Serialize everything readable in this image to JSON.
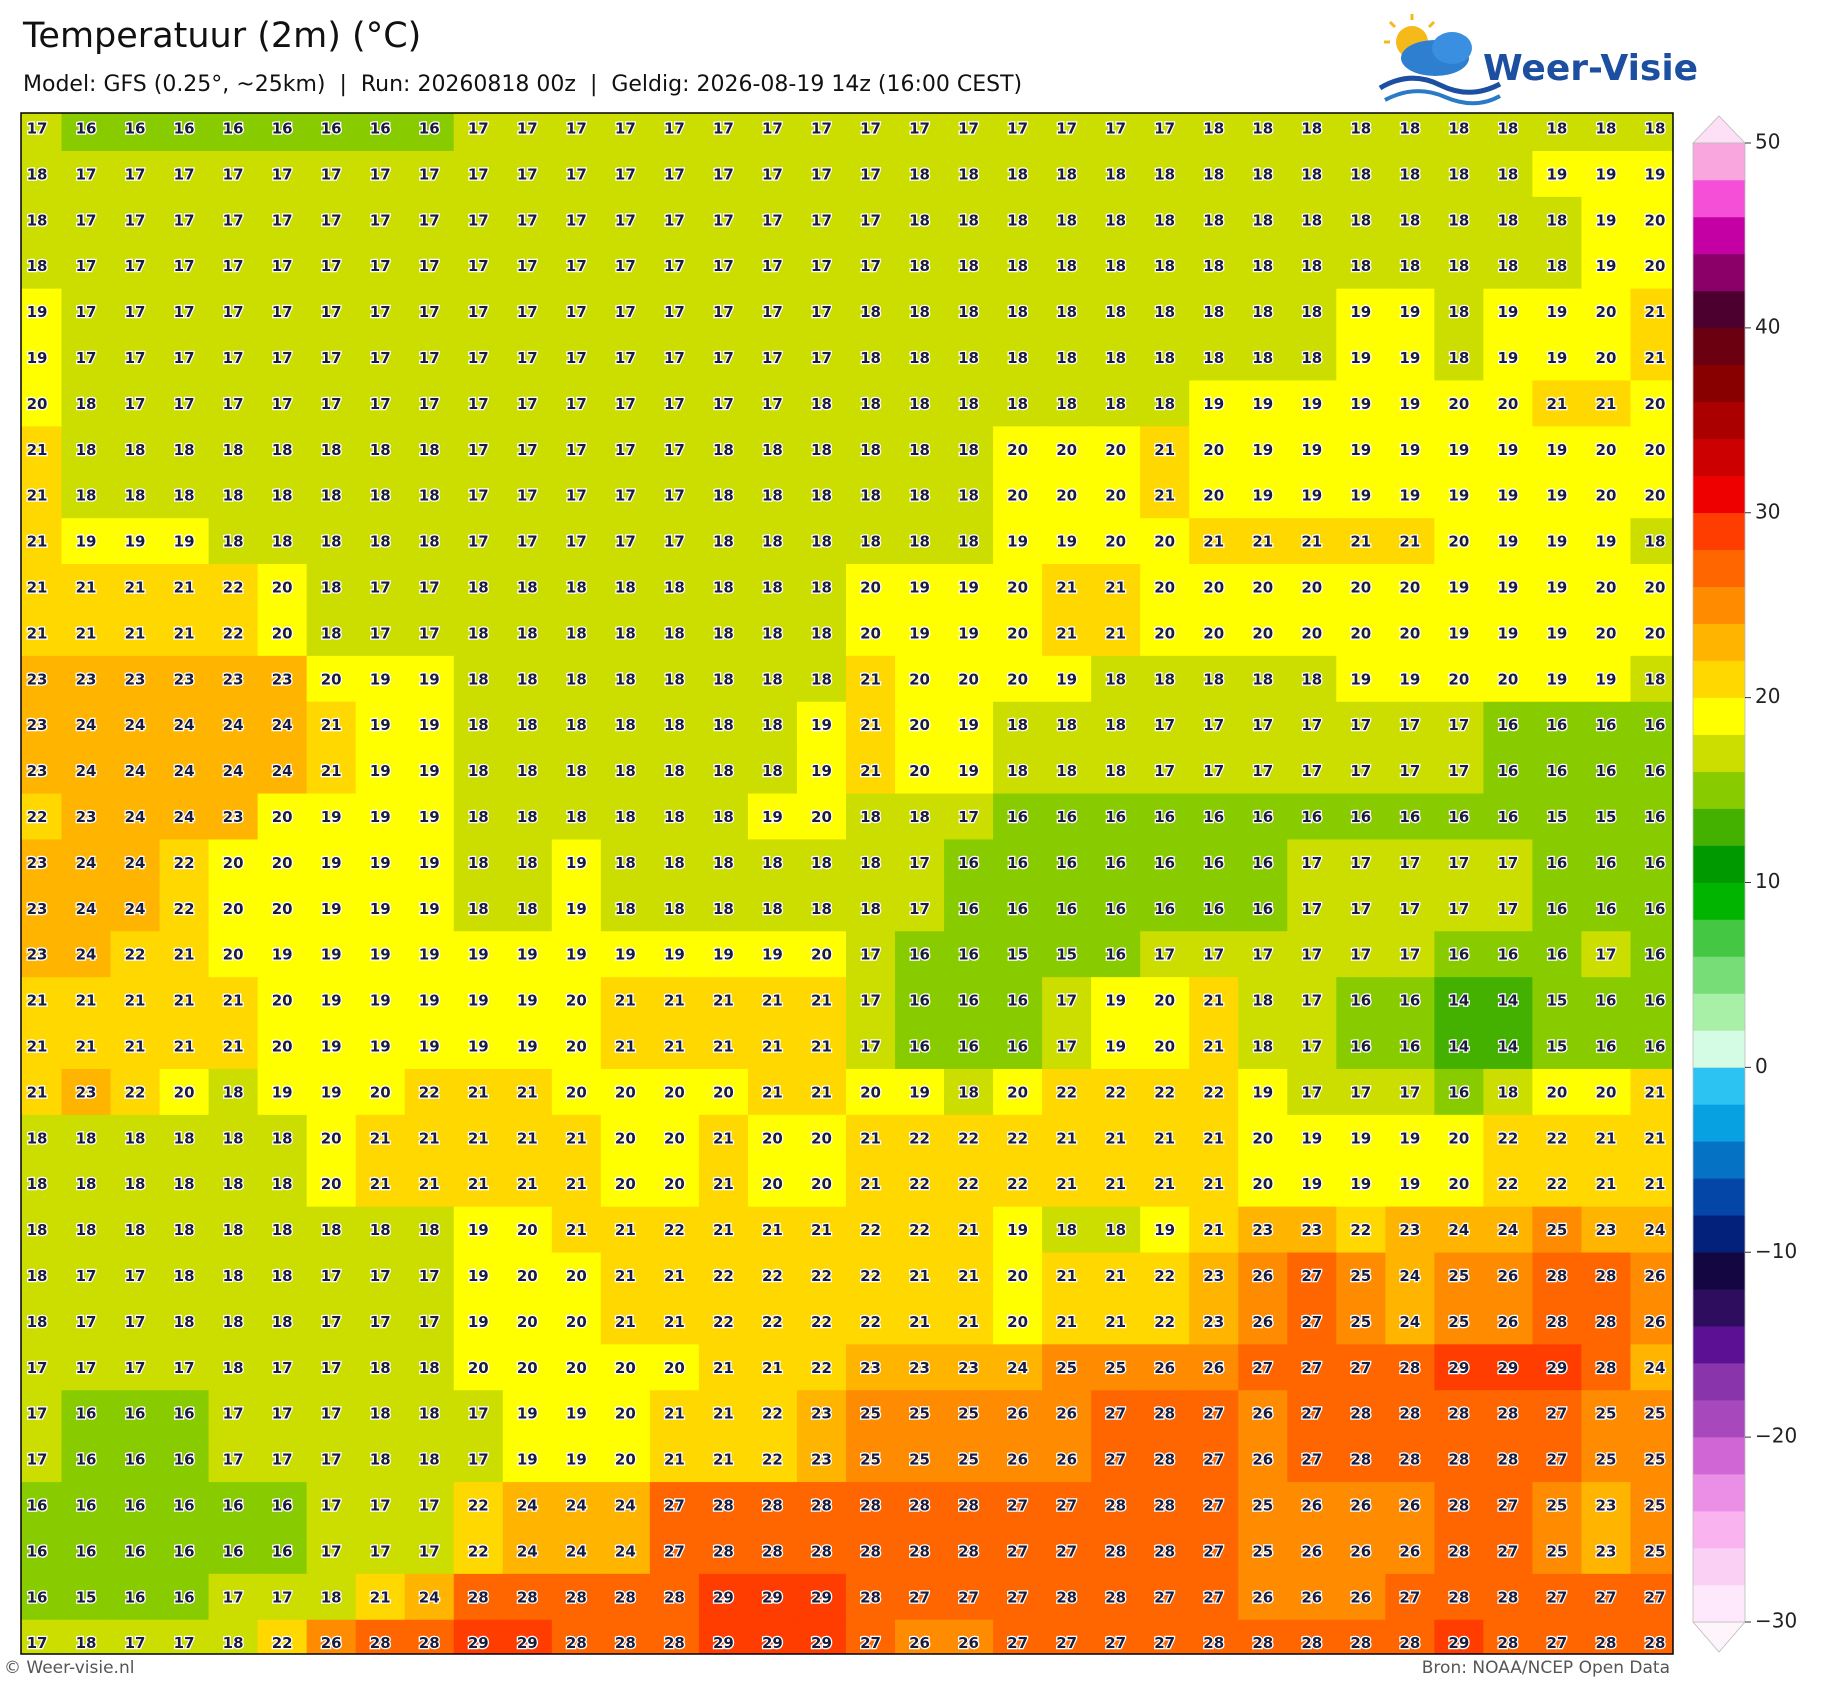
{
  "header": {
    "title": "Temperatuur (2m) (°C)",
    "subtitle": "Model: GFS (0.25°, ~25km)  |  Run: 20260818 00z  |  Geldig: 2026-08-19 14z (16:00 CEST)"
  },
  "logo": {
    "text": "Weer-Visie"
  },
  "map": {
    "rows": [
      [
        17,
        16,
        16,
        16,
        16,
        16,
        16,
        16,
        16,
        17,
        17,
        17,
        17,
        17,
        17,
        17,
        17,
        17,
        17,
        17,
        17,
        17,
        17,
        17,
        18,
        18,
        18,
        18,
        18,
        18,
        18,
        18,
        18,
        18
      ],
      [
        18,
        17,
        17,
        17,
        17,
        17,
        17,
        17,
        17,
        17,
        17,
        17,
        17,
        17,
        17,
        17,
        17,
        17,
        18,
        18,
        18,
        18,
        18,
        18,
        18,
        18,
        18,
        18,
        18,
        18,
        18,
        19,
        19,
        19
      ],
      [
        18,
        17,
        17,
        17,
        17,
        17,
        17,
        17,
        17,
        17,
        17,
        17,
        17,
        17,
        17,
        17,
        17,
        17,
        18,
        18,
        18,
        18,
        18,
        18,
        18,
        18,
        18,
        18,
        18,
        18,
        18,
        18,
        19,
        20
      ],
      [
        18,
        17,
        17,
        17,
        17,
        17,
        17,
        17,
        17,
        17,
        17,
        17,
        17,
        17,
        17,
        17,
        17,
        17,
        18,
        18,
        18,
        18,
        18,
        18,
        18,
        18,
        18,
        18,
        18,
        18,
        18,
        18,
        19,
        20
      ],
      [
        19,
        17,
        17,
        17,
        17,
        17,
        17,
        17,
        17,
        17,
        17,
        17,
        17,
        17,
        17,
        17,
        17,
        18,
        18,
        18,
        18,
        18,
        18,
        18,
        18,
        18,
        18,
        19,
        19,
        18,
        19,
        19,
        20,
        21
      ],
      [
        19,
        17,
        17,
        17,
        17,
        17,
        17,
        17,
        17,
        17,
        17,
        17,
        17,
        17,
        17,
        17,
        17,
        18,
        18,
        18,
        18,
        18,
        18,
        18,
        18,
        18,
        18,
        19,
        19,
        18,
        19,
        19,
        20,
        21
      ],
      [
        20,
        18,
        17,
        17,
        17,
        17,
        17,
        17,
        17,
        17,
        17,
        17,
        17,
        17,
        17,
        17,
        18,
        18,
        18,
        18,
        18,
        18,
        18,
        18,
        19,
        19,
        19,
        19,
        19,
        20,
        20,
        21,
        21,
        20
      ],
      [
        21,
        18,
        18,
        18,
        18,
        18,
        18,
        18,
        18,
        17,
        17,
        17,
        17,
        17,
        18,
        18,
        18,
        18,
        18,
        18,
        20,
        20,
        20,
        21,
        20,
        19,
        19,
        19,
        19,
        19,
        19,
        19,
        20,
        20
      ],
      [
        21,
        18,
        18,
        18,
        18,
        18,
        18,
        18,
        18,
        17,
        17,
        17,
        17,
        17,
        18,
        18,
        18,
        18,
        18,
        18,
        20,
        20,
        20,
        21,
        20,
        19,
        19,
        19,
        19,
        19,
        19,
        19,
        20,
        20
      ],
      [
        21,
        19,
        19,
        19,
        18,
        18,
        18,
        18,
        18,
        17,
        17,
        17,
        17,
        17,
        18,
        18,
        18,
        18,
        18,
        18,
        19,
        19,
        20,
        20,
        21,
        21,
        21,
        21,
        21,
        20,
        19,
        19,
        19,
        18
      ],
      [
        21,
        21,
        21,
        21,
        22,
        20,
        18,
        17,
        17,
        18,
        18,
        18,
        18,
        18,
        18,
        18,
        18,
        20,
        19,
        19,
        20,
        21,
        21,
        20,
        20,
        20,
        20,
        20,
        20,
        19,
        19,
        19,
        20,
        20
      ],
      [
        21,
        21,
        21,
        21,
        22,
        20,
        18,
        17,
        17,
        18,
        18,
        18,
        18,
        18,
        18,
        18,
        18,
        20,
        19,
        19,
        20,
        21,
        21,
        20,
        20,
        20,
        20,
        20,
        20,
        19,
        19,
        19,
        20,
        20
      ],
      [
        23,
        23,
        23,
        23,
        23,
        23,
        20,
        19,
        19,
        18,
        18,
        18,
        18,
        18,
        18,
        18,
        18,
        21,
        20,
        20,
        20,
        19,
        18,
        18,
        18,
        18,
        18,
        19,
        19,
        20,
        20,
        19,
        19,
        18
      ],
      [
        23,
        24,
        24,
        24,
        24,
        24,
        21,
        19,
        19,
        18,
        18,
        18,
        18,
        18,
        18,
        18,
        19,
        21,
        20,
        19,
        18,
        18,
        18,
        17,
        17,
        17,
        17,
        17,
        17,
        17,
        16,
        16,
        16,
        16
      ],
      [
        23,
        24,
        24,
        24,
        24,
        24,
        21,
        19,
        19,
        18,
        18,
        18,
        18,
        18,
        18,
        18,
        19,
        21,
        20,
        19,
        18,
        18,
        18,
        17,
        17,
        17,
        17,
        17,
        17,
        17,
        16,
        16,
        16,
        16
      ],
      [
        22,
        23,
        24,
        24,
        23,
        20,
        19,
        19,
        19,
        18,
        18,
        18,
        18,
        18,
        18,
        19,
        20,
        18,
        18,
        17,
        16,
        16,
        16,
        16,
        16,
        16,
        16,
        16,
        16,
        16,
        16,
        15,
        15,
        16
      ],
      [
        23,
        24,
        24,
        22,
        20,
        20,
        19,
        19,
        19,
        18,
        18,
        19,
        18,
        18,
        18,
        18,
        18,
        18,
        17,
        16,
        16,
        16,
        16,
        16,
        16,
        16,
        17,
        17,
        17,
        17,
        17,
        16,
        16,
        16
      ],
      [
        23,
        24,
        24,
        22,
        20,
        20,
        19,
        19,
        19,
        18,
        18,
        19,
        18,
        18,
        18,
        18,
        18,
        18,
        17,
        16,
        16,
        16,
        16,
        16,
        16,
        16,
        17,
        17,
        17,
        17,
        17,
        16,
        16,
        16
      ],
      [
        23,
        24,
        22,
        21,
        20,
        19,
        19,
        19,
        19,
        19,
        19,
        19,
        19,
        19,
        19,
        19,
        20,
        17,
        16,
        16,
        15,
        15,
        16,
        17,
        17,
        17,
        17,
        17,
        17,
        16,
        16,
        16,
        17,
        16
      ],
      [
        21,
        21,
        21,
        21,
        21,
        20,
        19,
        19,
        19,
        19,
        19,
        20,
        21,
        21,
        21,
        21,
        21,
        17,
        16,
        16,
        16,
        17,
        19,
        20,
        21,
        18,
        17,
        16,
        16,
        14,
        14,
        15,
        16,
        16
      ],
      [
        21,
        21,
        21,
        21,
        21,
        20,
        19,
        19,
        19,
        19,
        19,
        20,
        21,
        21,
        21,
        21,
        21,
        17,
        16,
        16,
        16,
        17,
        19,
        20,
        21,
        18,
        17,
        16,
        16,
        14,
        14,
        15,
        16,
        16
      ],
      [
        21,
        23,
        22,
        20,
        18,
        19,
        19,
        20,
        22,
        21,
        21,
        20,
        20,
        20,
        20,
        21,
        21,
        20,
        19,
        18,
        20,
        22,
        22,
        22,
        22,
        19,
        17,
        17,
        17,
        16,
        18,
        20,
        20,
        21
      ],
      [
        18,
        18,
        18,
        18,
        18,
        18,
        20,
        21,
        21,
        21,
        21,
        21,
        20,
        20,
        21,
        20,
        20,
        21,
        22,
        22,
        22,
        21,
        21,
        21,
        21,
        20,
        19,
        19,
        19,
        20,
        22,
        22,
        21,
        21
      ],
      [
        18,
        18,
        18,
        18,
        18,
        18,
        20,
        21,
        21,
        21,
        21,
        21,
        20,
        20,
        21,
        20,
        20,
        21,
        22,
        22,
        22,
        21,
        21,
        21,
        21,
        20,
        19,
        19,
        19,
        20,
        22,
        22,
        21,
        21
      ],
      [
        18,
        18,
        18,
        18,
        18,
        18,
        18,
        18,
        18,
        19,
        20,
        21,
        21,
        22,
        21,
        21,
        21,
        22,
        22,
        21,
        19,
        18,
        18,
        19,
        21,
        23,
        23,
        22,
        23,
        24,
        24,
        25,
        23,
        24
      ],
      [
        18,
        17,
        17,
        18,
        18,
        18,
        17,
        17,
        17,
        19,
        20,
        20,
        21,
        21,
        22,
        22,
        22,
        22,
        21,
        21,
        20,
        21,
        21,
        22,
        23,
        26,
        27,
        25,
        24,
        25,
        26,
        28,
        28,
        26
      ],
      [
        18,
        17,
        17,
        18,
        18,
        18,
        17,
        17,
        17,
        19,
        20,
        20,
        21,
        21,
        22,
        22,
        22,
        22,
        21,
        21,
        20,
        21,
        21,
        22,
        23,
        26,
        27,
        25,
        24,
        25,
        26,
        28,
        28,
        26
      ],
      [
        17,
        17,
        17,
        17,
        18,
        17,
        17,
        18,
        18,
        20,
        20,
        20,
        20,
        20,
        21,
        21,
        22,
        23,
        23,
        23,
        24,
        25,
        25,
        26,
        26,
        27,
        27,
        27,
        28,
        29,
        29,
        29,
        28,
        24
      ],
      [
        17,
        16,
        16,
        16,
        17,
        17,
        17,
        18,
        18,
        17,
        19,
        19,
        20,
        21,
        21,
        22,
        23,
        25,
        25,
        25,
        26,
        26,
        27,
        28,
        27,
        26,
        27,
        28,
        28,
        28,
        28,
        27,
        25,
        25
      ],
      [
        17,
        16,
        16,
        16,
        17,
        17,
        17,
        18,
        18,
        17,
        19,
        19,
        20,
        21,
        21,
        22,
        23,
        25,
        25,
        25,
        26,
        26,
        27,
        28,
        27,
        26,
        27,
        28,
        28,
        28,
        28,
        27,
        25,
        25
      ],
      [
        16,
        16,
        16,
        16,
        16,
        16,
        17,
        17,
        17,
        22,
        24,
        24,
        24,
        27,
        28,
        28,
        28,
        28,
        28,
        28,
        27,
        27,
        28,
        28,
        27,
        25,
        26,
        26,
        26,
        28,
        27,
        25,
        23,
        25
      ],
      [
        16,
        16,
        16,
        16,
        16,
        16,
        17,
        17,
        17,
        22,
        24,
        24,
        24,
        27,
        28,
        28,
        28,
        28,
        28,
        28,
        27,
        27,
        28,
        28,
        27,
        25,
        26,
        26,
        26,
        28,
        27,
        25,
        23,
        25
      ],
      [
        16,
        15,
        16,
        16,
        17,
        17,
        18,
        21,
        24,
        28,
        28,
        28,
        28,
        28,
        29,
        29,
        29,
        28,
        27,
        27,
        27,
        28,
        28,
        27,
        27,
        26,
        26,
        26,
        27,
        28,
        28,
        27,
        27,
        27
      ],
      [
        17,
        18,
        17,
        17,
        18,
        22,
        26,
        28,
        28,
        29,
        29,
        28,
        28,
        28,
        29,
        29,
        29,
        27,
        26,
        26,
        27,
        27,
        27,
        27,
        28,
        28,
        28,
        28,
        28,
        29,
        28,
        27,
        28,
        28
      ]
    ]
  },
  "colorbar": {
    "lim": [
      -30,
      50
    ],
    "ticks": [
      {
        "value": -30,
        "label": "−30"
      },
      {
        "value": -20,
        "label": "−20"
      },
      {
        "value": -10,
        "label": "−10"
      },
      0,
      10,
      20,
      30,
      40,
      50
    ],
    "colors": [
      "#fde9fb",
      "#fbd0f5",
      "#f9b3ee",
      "#ea8ee6",
      "#d066d6",
      "#a848bd",
      "#8a34ab",
      "#5c1194",
      "#2e0c5e",
      "#140640",
      "#03207a",
      "#0446a8",
      "#0572c4",
      "#07a0e0",
      "#2cc3f2",
      "#d4fbe4",
      "#a8efa8",
      "#77dd77",
      "#44c844",
      "#00b400",
      "#009a00",
      "#44b000",
      "#88cc00",
      "#ccdd00",
      "#ffff00",
      "#ffd800",
      "#ffb400",
      "#ff8c00",
      "#ff6600",
      "#ff3d00",
      "#ee0000",
      "#cc0000",
      "#aa0000",
      "#880000",
      "#6a0010",
      "#4b0030",
      "#8b0068",
      "#c400a4",
      "#f54fd8",
      "#f9a6de"
    ]
  },
  "footer": {
    "left": "© Weer-visie.nl",
    "right": "Bron: NOAA/NCEP Open Data"
  }
}
